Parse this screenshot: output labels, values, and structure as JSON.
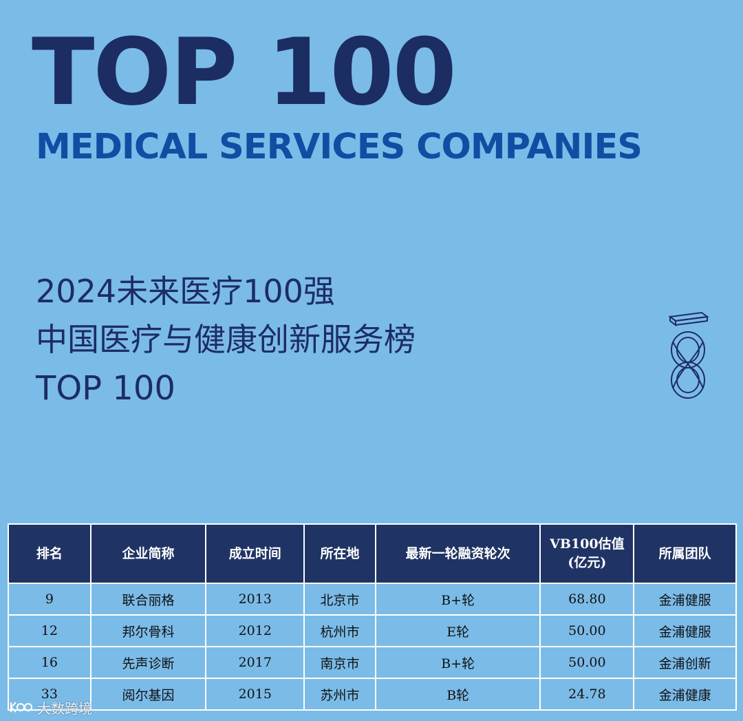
{
  "header": {
    "big_title": "TOP 100",
    "subtitle": "MEDICAL SERVICES COMPANIES"
  },
  "cn_title": {
    "line1": "2024未来医疗100强",
    "line2": "中国医疗与健康创新服务榜",
    "line3": "TOP 100"
  },
  "table": {
    "columns": [
      "排名",
      "企业简称",
      "成立时间",
      "所在地",
      "最新一轮融资轮次",
      "VB100估值",
      "所属团队"
    ],
    "valuation_unit": "(亿元)",
    "rows": [
      {
        "rank": "9",
        "name": "联合丽格",
        "founded": "2013",
        "city": "北京市",
        "round": "B+轮",
        "valuation": "68.80",
        "team": "金浦健服"
      },
      {
        "rank": "12",
        "name": "邦尔骨科",
        "founded": "2012",
        "city": "杭州市",
        "round": "E轮",
        "valuation": "50.00",
        "team": "金浦健服"
      },
      {
        "rank": "16",
        "name": "先声诊断",
        "founded": "2017",
        "city": "南京市",
        "round": "B+轮",
        "valuation": "50.00",
        "team": "金浦创新"
      },
      {
        "rank": "33",
        "name": "阅尔基因",
        "founded": "2015",
        "city": "苏州市",
        "round": "B轮",
        "valuation": "24.78",
        "team": "金浦健康"
      }
    ]
  },
  "watermark": {
    "text": "大数跨境",
    "icon": "brand-logo-icon"
  },
  "logo": {
    "icon": "infinity-eight-logo-icon"
  },
  "colors": {
    "background": "#7bbbe8",
    "navy": "#1c2d63",
    "blue": "#0f4ea3",
    "header_cell": "#1f3464"
  }
}
